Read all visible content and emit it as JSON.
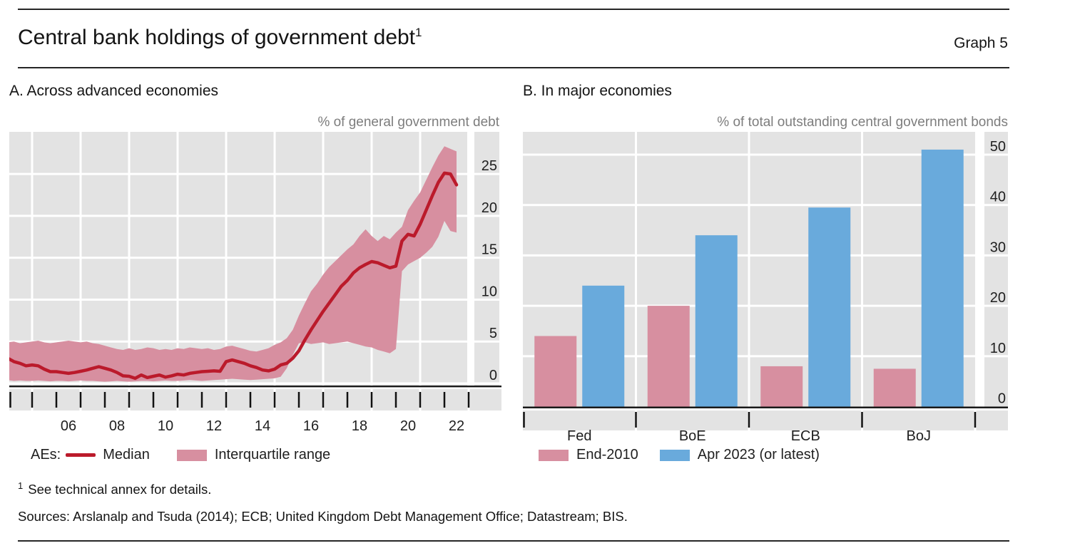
{
  "header": {
    "title": "Central bank holdings of government debt",
    "title_superscript": "1",
    "graph_label": "Graph 5"
  },
  "panels": {
    "a": {
      "title": "A. Across advanced economies",
      "unit_label": "% of general government debt",
      "legend_prefix": "AEs:",
      "legend_median_label": "Median",
      "legend_band_label": "Interquartile range"
    },
    "b": {
      "title": "B. In major economies",
      "unit_label": "% of total outstanding central government bonds",
      "legend_series1_label": "End-2010",
      "legend_series2_label": "Apr 2023 (or latest)"
    }
  },
  "chart_data": [
    {
      "type": "line",
      "panel": "A",
      "title": "A. Across advanced economies",
      "ylabel": "% of general government debt",
      "ylim": [
        0,
        30
      ],
      "y_ticks": [
        0,
        5,
        10,
        15,
        20,
        25
      ],
      "grid": true,
      "legend_position": "bottom",
      "x_start": 2004.0,
      "x_step": 0.25,
      "x_axis": {
        "first_tick_year": 2004,
        "last_tick_year": 2023,
        "grid_years": [
          2005,
          2007,
          2009,
          2011,
          2013,
          2015,
          2017,
          2019,
          2021,
          2023
        ],
        "label_ticks": [
          {
            "year": 2006,
            "label": "06"
          },
          {
            "year": 2008,
            "label": "08"
          },
          {
            "year": 2010,
            "label": "10"
          },
          {
            "year": 2012,
            "label": "12"
          },
          {
            "year": 2014,
            "label": "14"
          },
          {
            "year": 2016,
            "label": "16"
          },
          {
            "year": 2018,
            "label": "18"
          },
          {
            "year": 2020,
            "label": "20"
          },
          {
            "year": 2022,
            "label": "22"
          }
        ]
      },
      "series": [
        {
          "name": "Median",
          "type": "line",
          "color": "#bb1a2b",
          "values": [
            3.0,
            2.6,
            2.4,
            2.1,
            2.2,
            2.1,
            1.7,
            1.4,
            1.4,
            1.3,
            1.2,
            1.3,
            1.45,
            1.6,
            1.8,
            2.0,
            1.8,
            1.6,
            1.3,
            0.9,
            0.85,
            0.6,
            1.0,
            0.7,
            0.85,
            1.0,
            0.75,
            0.9,
            1.1,
            1.0,
            1.2,
            1.3,
            1.4,
            1.45,
            1.5,
            1.45,
            2.6,
            2.8,
            2.6,
            2.4,
            2.1,
            1.9,
            1.6,
            1.5,
            1.7,
            2.2,
            2.4,
            3.0,
            3.9,
            5.2,
            6.4,
            7.5,
            8.6,
            9.6,
            10.6,
            11.6,
            12.3,
            13.2,
            13.8,
            14.2,
            14.55,
            14.4,
            14.1,
            13.8,
            14.0,
            17.0,
            17.8,
            17.6,
            19.0,
            20.7,
            22.4,
            24.0,
            25.1,
            25.0,
            23.7
          ]
        },
        {
          "name": "Interquartile range",
          "type": "band",
          "color": "#d78fa0",
          "upper": [
            4.9,
            5.0,
            4.8,
            4.9,
            5.0,
            5.1,
            4.9,
            4.8,
            4.9,
            5.0,
            5.1,
            5.0,
            4.9,
            5.0,
            4.8,
            4.7,
            4.5,
            4.3,
            4.1,
            4.0,
            4.2,
            4.0,
            4.1,
            4.3,
            4.2,
            4.0,
            4.1,
            4.0,
            4.2,
            4.1,
            4.3,
            4.2,
            4.1,
            4.2,
            4.0,
            4.1,
            4.4,
            4.5,
            4.3,
            4.1,
            3.9,
            3.8,
            4.0,
            4.2,
            4.6,
            4.9,
            5.4,
            6.4,
            8.1,
            9.6,
            11.0,
            11.9,
            13.0,
            13.9,
            14.6,
            15.3,
            16.0,
            16.6,
            17.6,
            18.4,
            17.6,
            17.0,
            17.6,
            17.2,
            18.0,
            18.7,
            20.7,
            21.8,
            22.8,
            24.3,
            25.8,
            27.2,
            28.3,
            28.0,
            27.7
          ],
          "lower": [
            0.4,
            0.3,
            0.35,
            0.3,
            0.3,
            0.35,
            0.3,
            0.25,
            0.3,
            0.3,
            0.25,
            0.3,
            0.35,
            0.3,
            0.3,
            0.25,
            0.2,
            0.25,
            0.3,
            0.25,
            0.2,
            0.25,
            0.3,
            0.3,
            0.25,
            0.3,
            0.35,
            0.3,
            0.3,
            0.35,
            0.4,
            0.35,
            0.3,
            0.35,
            0.4,
            0.45,
            0.5,
            0.55,
            0.5,
            0.45,
            0.4,
            0.45,
            0.5,
            0.55,
            0.6,
            0.8,
            1.8,
            3.4,
            4.8,
            4.9,
            4.7,
            4.8,
            4.9,
            4.7,
            4.8,
            4.9,
            5.0,
            4.8,
            4.6,
            4.4,
            4.3,
            4.0,
            3.8,
            3.6,
            4.1,
            13.4,
            14.2,
            14.6,
            15.0,
            15.6,
            16.3,
            17.5,
            19.4,
            18.2,
            18.0
          ]
        }
      ]
    },
    {
      "type": "bar",
      "panel": "B",
      "title": "B. In major economies",
      "ylabel": "% of total outstanding central government bonds",
      "ylim": [
        0,
        53
      ],
      "y_ticks": [
        0,
        10,
        20,
        30,
        40,
        50
      ],
      "grid": true,
      "legend_position": "bottom",
      "categories": [
        "Fed",
        "BoE",
        "ECB",
        "BoJ"
      ],
      "series": [
        {
          "name": "End-2010",
          "color": "#d78fa0",
          "values": [
            14,
            20,
            8,
            7.5
          ]
        },
        {
          "name": "Apr 2023 (or latest)",
          "color": "#69aadc",
          "values": [
            24,
            34,
            39.5,
            51
          ]
        }
      ]
    }
  ],
  "footnote": {
    "marker": "1",
    "text": "See technical annex for details."
  },
  "sources": "Sources: Arslanalp and Tsuda (2014); ECB; United Kingdom Debt Management Office; Datastream; BIS."
}
